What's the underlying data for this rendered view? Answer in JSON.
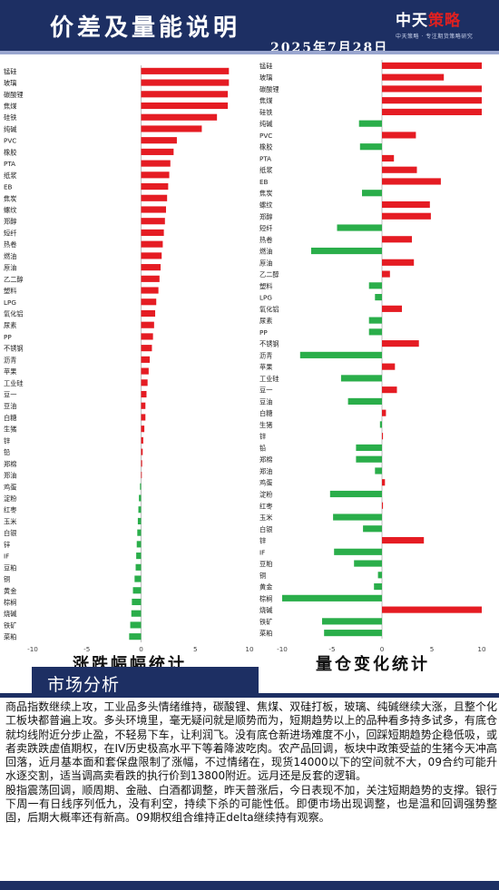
{
  "header": {
    "title": "价差及量能说明",
    "date": "2025年7月28日",
    "logo_main_a": "中天",
    "logo_main_b": "策略",
    "logo_sub": "中天策略 · 专注期货策略研究"
  },
  "colors": {
    "up": "#e51c23",
    "down": "#2aae4a",
    "navy": "#1d2f63"
  },
  "chart_data": [
    {
      "type": "bar",
      "orientation": "horizontal",
      "title": "涨跌幅幅统计",
      "xlim": [
        -10,
        10
      ],
      "xticks": [
        "-10",
        "-5",
        "0",
        "5",
        "10"
      ],
      "categories": [
        "锰硅",
        "玻璃",
        "碳酸锂",
        "焦煤",
        "硅铁",
        "纯碱",
        "PVC",
        "橡胶",
        "PTA",
        "纸浆",
        "EB",
        "焦炭",
        "螺纹",
        "郑醇",
        "短纤",
        "热卷",
        "燃油",
        "原油",
        "乙二醇",
        "塑料",
        "LPG",
        "氧化铝",
        "尿素",
        "PP",
        "不锈钢",
        "沥青",
        "苹果",
        "工业硅",
        "豆一",
        "豆油",
        "白糖",
        "生猪",
        "锌",
        "铅",
        "郑棉",
        "郑油",
        "鸡蛋",
        "淀粉",
        "红枣",
        "玉米",
        "白银",
        "锌",
        "IF",
        "豆粕",
        "铜",
        "黄金",
        "棕榈",
        "烧碱",
        "铁矿",
        "菜粕"
      ],
      "values": [
        8.1,
        8.1,
        8.0,
        8.0,
        7.0,
        5.6,
        3.3,
        3.0,
        2.7,
        2.6,
        2.5,
        2.4,
        2.3,
        2.2,
        2.1,
        2.0,
        1.9,
        1.8,
        1.7,
        1.6,
        1.4,
        1.3,
        1.2,
        1.1,
        1.0,
        0.8,
        0.7,
        0.6,
        0.5,
        0.4,
        0.4,
        0.3,
        0.2,
        0.15,
        0.1,
        0.05,
        -0.1,
        -0.2,
        -0.25,
        -0.3,
        -0.35,
        -0.4,
        -0.45,
        -0.5,
        -0.6,
        -0.75,
        -0.85,
        -0.9,
        -1.0,
        -1.1
      ]
    },
    {
      "type": "bar",
      "orientation": "horizontal",
      "title": "量仓变化统计",
      "xlim": [
        -10,
        10
      ],
      "xticks": [
        "-10",
        "-5",
        "0",
        "5",
        "10"
      ],
      "categories": [
        "锰硅",
        "玻璃",
        "碳酸锂",
        "焦煤",
        "硅铁",
        "纯碱",
        "PVC",
        "橡胶",
        "PTA",
        "纸浆",
        "EB",
        "焦炭",
        "螺纹",
        "郑醇",
        "短纤",
        "热卷",
        "燃油",
        "原油",
        "乙二醇",
        "塑料",
        "LPG",
        "氧化铝",
        "尿素",
        "PP",
        "不锈钢",
        "沥青",
        "苹果",
        "工业硅",
        "豆一",
        "豆油",
        "白糖",
        "生猪",
        "锌",
        "铅",
        "郑棉",
        "郑油",
        "鸡蛋",
        "淀粉",
        "红枣",
        "玉米",
        "白银",
        "锌",
        "IF",
        "豆粕",
        "铜",
        "黄金",
        "棕榈",
        "烧碱",
        "铁矿",
        "菜粕"
      ],
      "values": [
        10,
        6.2,
        10,
        10,
        10,
        -2.3,
        3.4,
        -2.2,
        1.2,
        3.5,
        5.9,
        -2.0,
        4.8,
        4.9,
        -4.5,
        3.0,
        -7.1,
        3.2,
        0.8,
        -1.3,
        -0.7,
        2.0,
        -1.3,
        -1.3,
        3.7,
        -8.2,
        1.3,
        -4.1,
        1.5,
        -3.4,
        0.4,
        -0.2,
        0.1,
        -2.6,
        -2.6,
        -0.7,
        0.3,
        -5.2,
        0.1,
        -4.9,
        -1.9,
        4.2,
        -4.8,
        -2.8,
        -0.4,
        -0.8,
        -10,
        10,
        -6.0,
        -5.8
      ]
    }
  ],
  "analysis": {
    "heading": "市场分析",
    "p1": "商品指数继续上攻，工业品多头情绪维持，碳酸锂、焦煤、双硅打板，玻璃、纯碱继续大涨，且整个化工板块都普遍上攻。多头环境里，毫无疑问就是顺势而为，短期趋势以上的品种看多持多试多，有底仓就均线附近分步止盈，不轻易下车，让利润飞。没有底仓新进场难度不小，回踩短期趋势企稳低吸，或者卖跌跌虚值期权，在IV历史极高水平下等着降波吃肉。农产品回调，板块中政策受益的生猪今天冲高回落，近月基本面和套保盘限制了涨幅，不过情绪在，现货14000以下的空间就不大，09合约可能升水逐交割，适当调高卖看跌的执行价到13800附近。远月还是反套的逻辑。",
    "p2": "股指震荡回调，顺周期、金融、白酒都调整，昨天普涨后，今日表现不加，关注短期趋势的支撑。银行下周一有日线序列低九，没有利空，持续下杀的可能性低。即便市场出现调整，也是温和回调强势整固，后期大概率还有新高。09期权组合维持正delta继续持有观察。"
  }
}
